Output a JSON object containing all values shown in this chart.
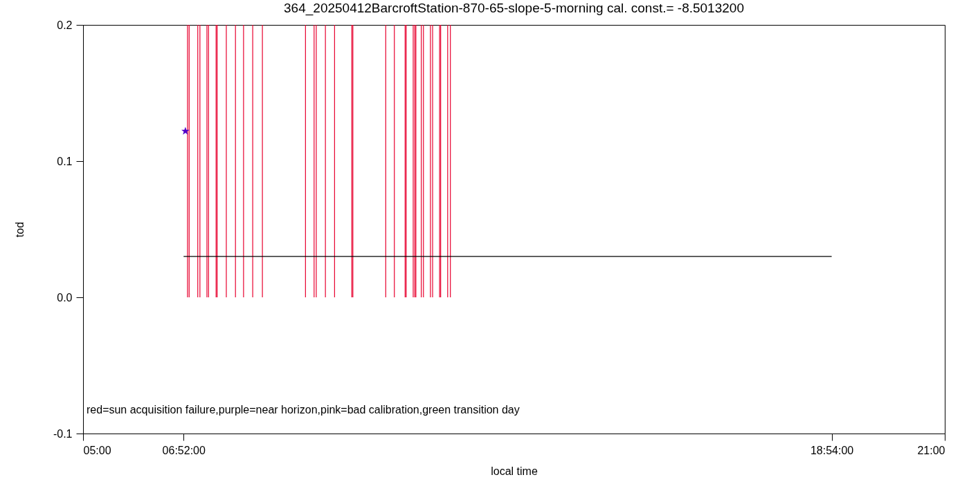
{
  "chart_data": {
    "type": "bar",
    "title": "364_20250412BarcroftStation-870-65-slope-5-morning cal. const.= -8.5013200",
    "xlabel": "local time",
    "ylabel": "tod",
    "annotations": [
      "red=sun acquisition failure,purple=near horizon,pink=bad calibration,green transition day"
    ],
    "xlim": [
      5,
      21
    ],
    "xticks": [
      {
        "value": 5,
        "label": "05:00"
      },
      {
        "value": 6.8667,
        "label": "06:52:00"
      },
      {
        "value": 18.9,
        "label": "18:54:00"
      },
      {
        "value": 21,
        "label": "21:00"
      }
    ],
    "ylim": [
      -0.1,
      0.2
    ],
    "yticks": [
      -0.1,
      {
        "value": 0,
        "label": "0.0"
      },
      0.1,
      0.2
    ],
    "grid": false,
    "series": [
      {
        "color": "#e8002e",
        "x": [
          6.94,
          6.97,
          7.13,
          7.17,
          7.3,
          7.33,
          7.47,
          7.49,
          7.66,
          7.83,
          7.98,
          8.15,
          8.33,
          9.13,
          9.29,
          9.33,
          9.5,
          9.67,
          9.99,
          10.01,
          10.62,
          10.78,
          10.98,
          11.0,
          11.13,
          11.16,
          11.18,
          11.28,
          11.32,
          11.45,
          11.49,
          11.62,
          11.64,
          11.77,
          11.82
        ],
        "values": [
          0.2,
          0.2,
          0.2,
          0.2,
          0.2,
          0.2,
          0.2,
          0.2,
          0.2,
          0.2,
          0.2,
          0.2,
          0.2,
          0.2,
          0.2,
          0.2,
          0.2,
          0.2,
          0.2,
          0.2,
          0.2,
          0.2,
          0.2,
          0.2,
          0.2,
          0.2,
          0.2,
          0.2,
          0.2,
          0.2,
          0.2,
          0.2,
          0.2,
          0.2,
          0.2
        ]
      },
      {
        "type": "line",
        "color": "#000000",
        "x": [
          6.8667,
          18.9
        ],
        "values": [
          0.03,
          0.03
        ]
      },
      {
        "type": "scatter",
        "color": "#5000c8",
        "marker": "star",
        "x": [
          6.9
        ],
        "values": [
          0.122
        ]
      }
    ]
  }
}
